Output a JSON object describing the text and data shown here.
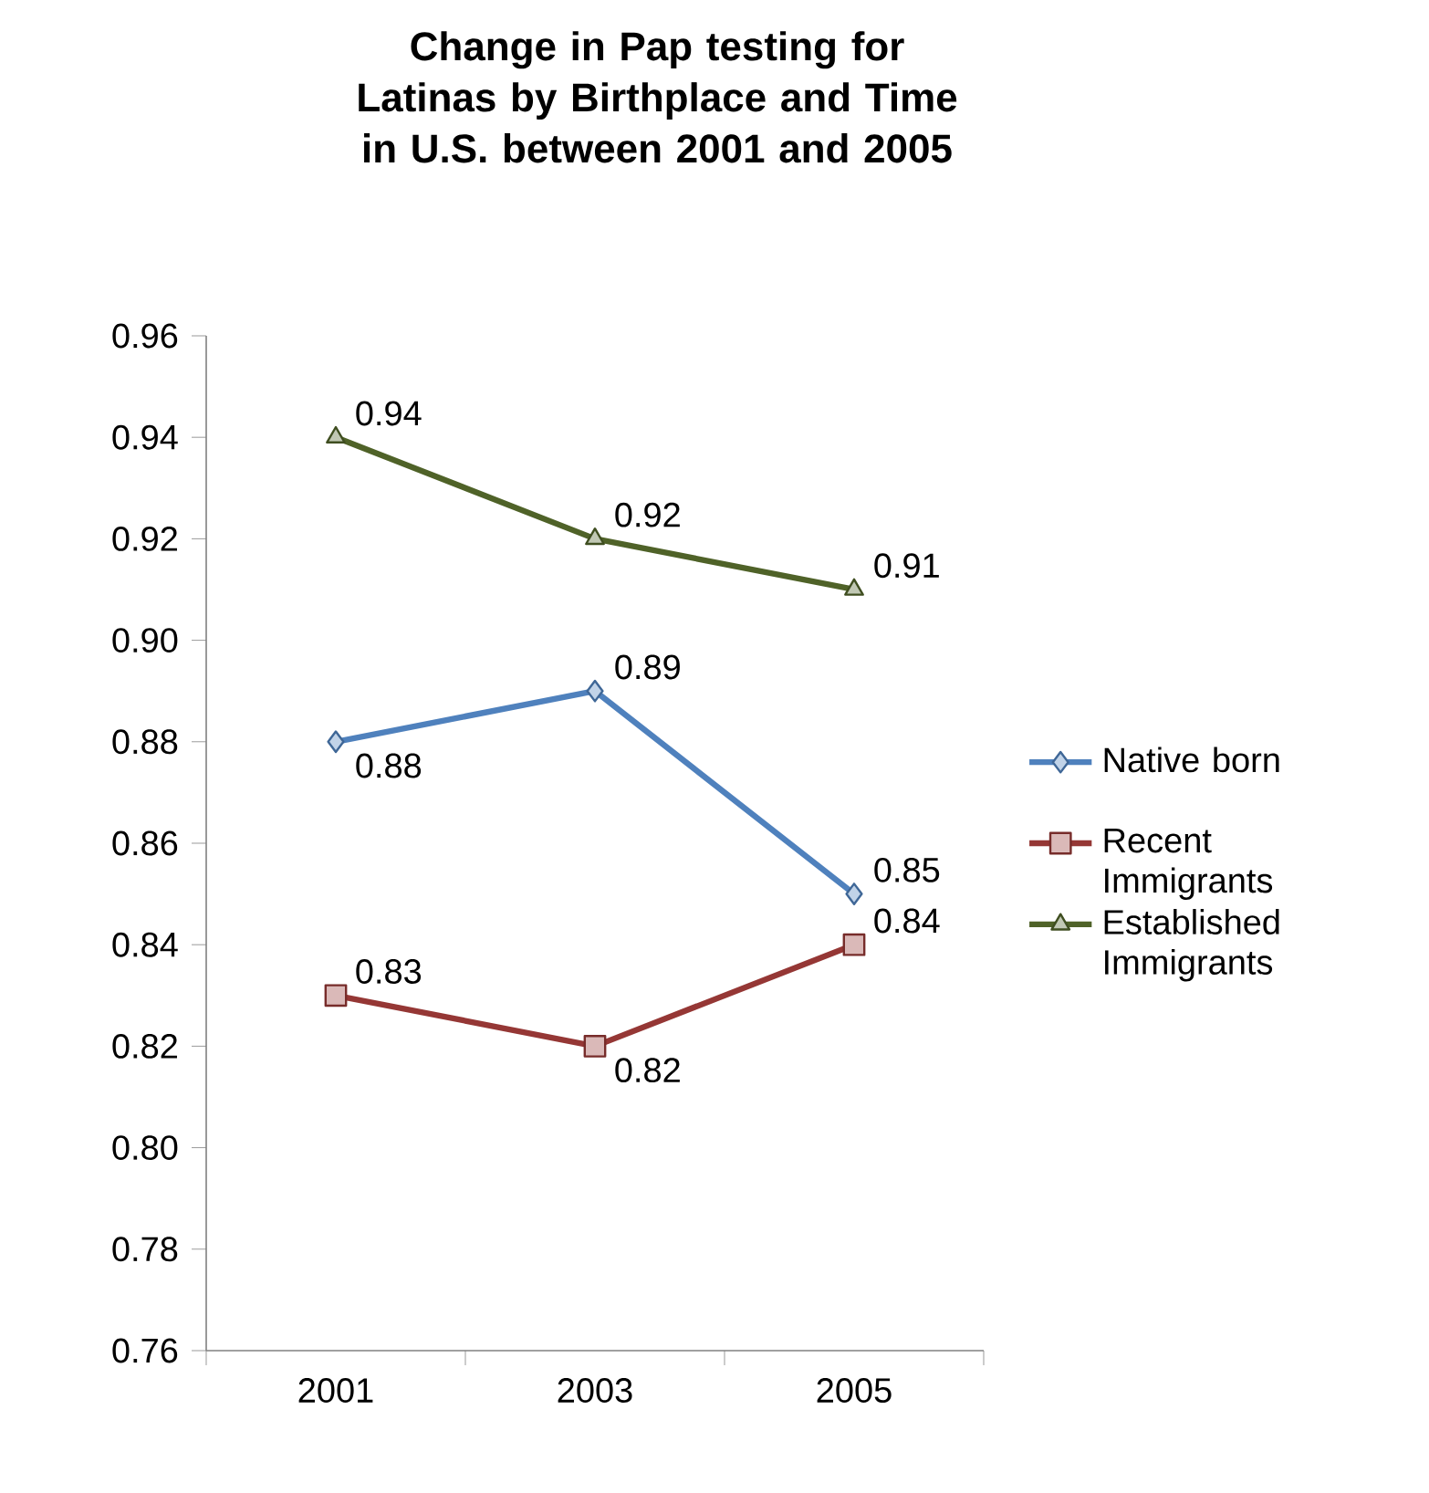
{
  "chart_data": {
    "type": "line",
    "title": "Change in Pap testing for Latinas by Birthplace and Time in U.S. between 2001 and 2005",
    "categories": [
      "2001",
      "2003",
      "2005"
    ],
    "series": [
      {
        "name": "Native born",
        "color": "#4f81bd",
        "marker": "diamond",
        "values": [
          0.88,
          0.89,
          0.85
        ]
      },
      {
        "name": "Recent Immigrants",
        "color": "#953735",
        "marker": "square",
        "values": [
          0.83,
          0.82,
          0.84
        ]
      },
      {
        "name": "Established Immigrants",
        "color": "#4f6228",
        "marker": "triangle",
        "values": [
          0.94,
          0.92,
          0.91
        ]
      }
    ],
    "ylim": [
      0.76,
      0.96
    ],
    "yticks": [
      0.76,
      0.78,
      {
        "value": 0.8,
        "label": "0.80"
      },
      0.82,
      0.84,
      0.86,
      0.88,
      {
        "value": 0.9,
        "label": "0.90"
      },
      0.92,
      0.94,
      0.96
    ],
    "grid": false,
    "legend": "right",
    "data_labels": true
  }
}
